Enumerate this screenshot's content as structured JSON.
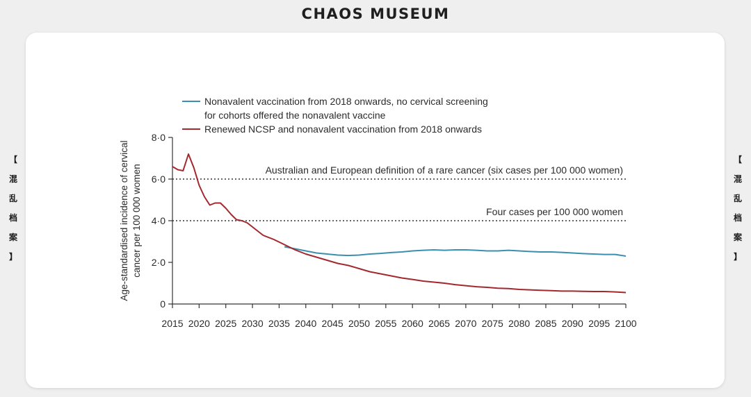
{
  "header": {
    "title": "CHAOS MUSEUM"
  },
  "side_label": {
    "open": "【",
    "chars": [
      "混",
      "乱",
      "档",
      "案"
    ],
    "close": "】"
  },
  "colors": {
    "nonavalent": "#3a8fb0",
    "ncsp": "#a3282e",
    "reference": "#333333"
  },
  "chart_data": {
    "type": "line",
    "title": "",
    "xlabel": "",
    "ylabel": "Age-standardised incidence of cervical cancer per 100 000 women",
    "ylabel_lines": [
      "Age-standardised incidence of cervical",
      "cancer per 100 000 women"
    ],
    "xlim": [
      2015,
      2100
    ],
    "ylim": [
      0,
      8
    ],
    "x_ticks": [
      2015,
      2020,
      2025,
      2030,
      2035,
      2040,
      2045,
      2050,
      2055,
      2060,
      2065,
      2070,
      2075,
      2080,
      2085,
      2090,
      2095,
      2100
    ],
    "x_tick_labels": [
      "2015",
      "2020",
      "2025",
      "2030",
      "2035",
      "2040",
      "2045",
      "2050",
      "2055",
      "2060",
      "2065",
      "2070",
      "2075",
      "2080",
      "2085",
      "2090",
      "2095",
      "2100"
    ],
    "y_ticks": [
      0,
      2,
      4,
      6,
      8
    ],
    "y_tick_labels": [
      "0",
      "2·0",
      "4·0",
      "6·0",
      "8·0"
    ],
    "legend": {
      "placement": "top-left",
      "entries": [
        {
          "series": 0,
          "lines": [
            "Nonavalent vaccination from 2018 onwards, no cervical screening",
            "for cohorts offered the nonavalent vaccine"
          ]
        },
        {
          "series": 1,
          "lines": [
            "Renewed NCSP and nonavalent vaccination from 2018 onwards"
          ]
        }
      ]
    },
    "series": [
      {
        "name": "Nonavalent vaccination from 2018 onwards, no cervical screening for cohorts offered the nonavalent vaccine",
        "color": "#3a8fb0",
        "x": [
          2036,
          2038,
          2040,
          2042,
          2044,
          2046,
          2048,
          2050,
          2052,
          2054,
          2056,
          2058,
          2060,
          2062,
          2064,
          2066,
          2068,
          2070,
          2072,
          2074,
          2076,
          2078,
          2080,
          2082,
          2084,
          2086,
          2088,
          2090,
          2092,
          2094,
          2096,
          2098,
          2100
        ],
        "values": [
          2.75,
          2.65,
          2.55,
          2.45,
          2.4,
          2.35,
          2.33,
          2.35,
          2.4,
          2.43,
          2.47,
          2.5,
          2.55,
          2.58,
          2.6,
          2.58,
          2.6,
          2.6,
          2.58,
          2.55,
          2.55,
          2.58,
          2.55,
          2.52,
          2.5,
          2.5,
          2.48,
          2.45,
          2.42,
          2.4,
          2.38,
          2.38,
          2.3
        ]
      },
      {
        "name": "Renewed NCSP and nonavalent vaccination from 2018 onwards",
        "color": "#a3282e",
        "x": [
          2015,
          2016,
          2017,
          2018,
          2019,
          2020,
          2021,
          2022,
          2023,
          2024,
          2025,
          2026,
          2027,
          2028,
          2029,
          2030,
          2032,
          2034,
          2036,
          2038,
          2040,
          2042,
          2044,
          2046,
          2048,
          2050,
          2052,
          2054,
          2056,
          2058,
          2060,
          2062,
          2064,
          2066,
          2068,
          2070,
          2072,
          2074,
          2076,
          2078,
          2080,
          2082,
          2084,
          2086,
          2088,
          2090,
          2092,
          2094,
          2096,
          2098,
          2100
        ],
        "values": [
          6.6,
          6.45,
          6.4,
          7.2,
          6.55,
          5.7,
          5.15,
          4.75,
          4.85,
          4.85,
          4.6,
          4.3,
          4.05,
          4.0,
          3.9,
          3.7,
          3.3,
          3.1,
          2.85,
          2.6,
          2.4,
          2.25,
          2.1,
          1.95,
          1.85,
          1.7,
          1.55,
          1.45,
          1.35,
          1.25,
          1.18,
          1.1,
          1.05,
          1.0,
          0.93,
          0.88,
          0.83,
          0.8,
          0.76,
          0.74,
          0.7,
          0.68,
          0.66,
          0.64,
          0.62,
          0.62,
          0.61,
          0.6,
          0.6,
          0.58,
          0.55
        ]
      }
    ],
    "reference_lines": [
      {
        "y": 6.0,
        "style": "dotted",
        "label": "Australian and European definition of a rare cancer (six cases per 100 000 women)"
      },
      {
        "y": 4.0,
        "style": "dotted",
        "label": "Four cases per 100 000 women"
      }
    ],
    "grid": false
  }
}
